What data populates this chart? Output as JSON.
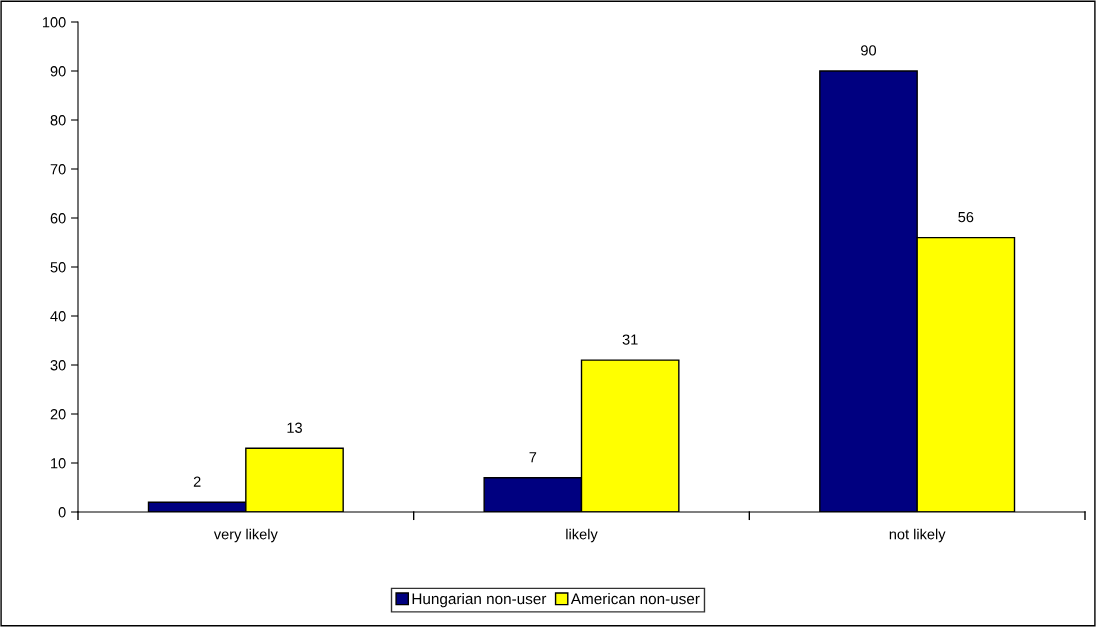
{
  "chart_data": {
    "type": "bar",
    "categories": [
      "very likely",
      "likely",
      "not likely"
    ],
    "series": [
      {
        "name": "Hungarian non-user",
        "color": "#000080",
        "values": [
          2,
          7,
          90
        ]
      },
      {
        "name": "American non-user",
        "color": "#ffff00",
        "values": [
          13,
          31,
          56
        ]
      }
    ],
    "ylim": [
      0,
      100
    ],
    "yticks": [
      0,
      10,
      20,
      30,
      40,
      50,
      60,
      70,
      80,
      90,
      100
    ],
    "data_labels": true,
    "grid": false,
    "legend": "bottom"
  }
}
